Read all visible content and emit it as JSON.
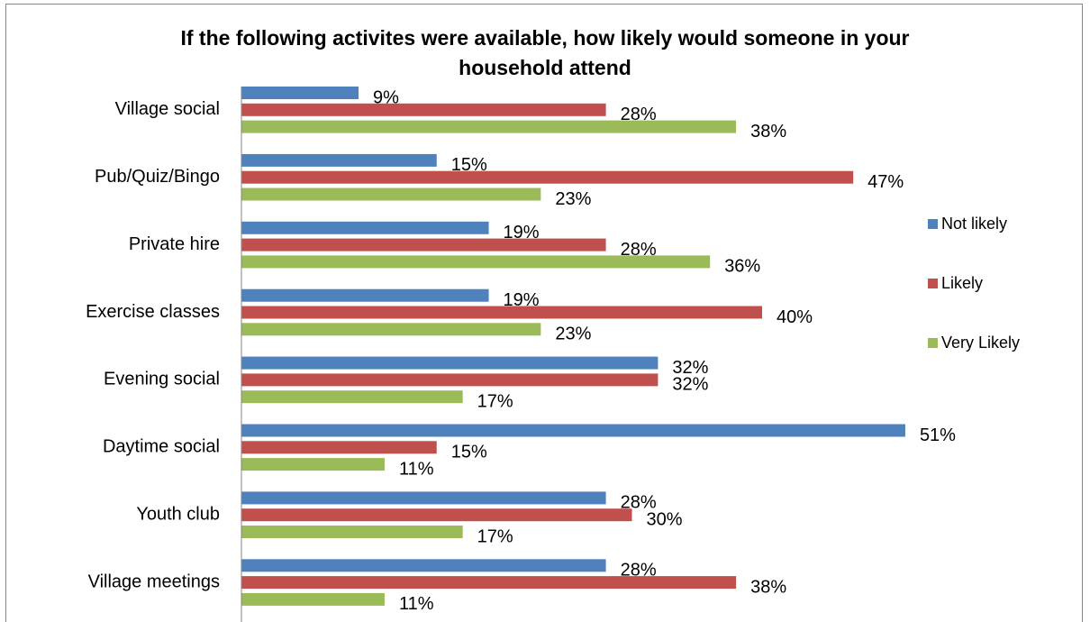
{
  "chart_data": {
    "type": "bar",
    "orientation": "horizontal",
    "title": "If the following activites were available, how likely would someone in your household attend",
    "xlabel": "",
    "ylabel": "",
    "xlim": [
      0,
      55
    ],
    "grid": false,
    "legend_position": "right",
    "categories": [
      "Village social",
      "Pub/Quiz/Bingo",
      "Private hire",
      "Exercise classes",
      "Evening social",
      "Daytime social",
      "Youth club",
      "Village meetings"
    ],
    "series": [
      {
        "name": "Not likely",
        "color": "#4f81bd",
        "values": [
          9,
          15,
          19,
          19,
          32,
          51,
          28,
          28
        ],
        "labels": [
          "9%",
          "15%",
          "19%",
          "19%",
          "32%",
          "51%",
          "28%",
          "28%"
        ]
      },
      {
        "name": "Likely",
        "color": "#c0504d",
        "values": [
          28,
          47,
          28,
          40,
          32,
          15,
          30,
          38
        ],
        "labels": [
          "28%",
          "47%",
          "28%",
          "40%",
          "32%",
          "15%",
          "30%",
          "38%"
        ]
      },
      {
        "name": "Very Likely",
        "color": "#9bbb59",
        "values": [
          38,
          23,
          36,
          23,
          17,
          11,
          17,
          11
        ],
        "labels": [
          "38%",
          "23%",
          "36%",
          "23%",
          "17%",
          "11%",
          "17%",
          "11%"
        ]
      }
    ]
  }
}
